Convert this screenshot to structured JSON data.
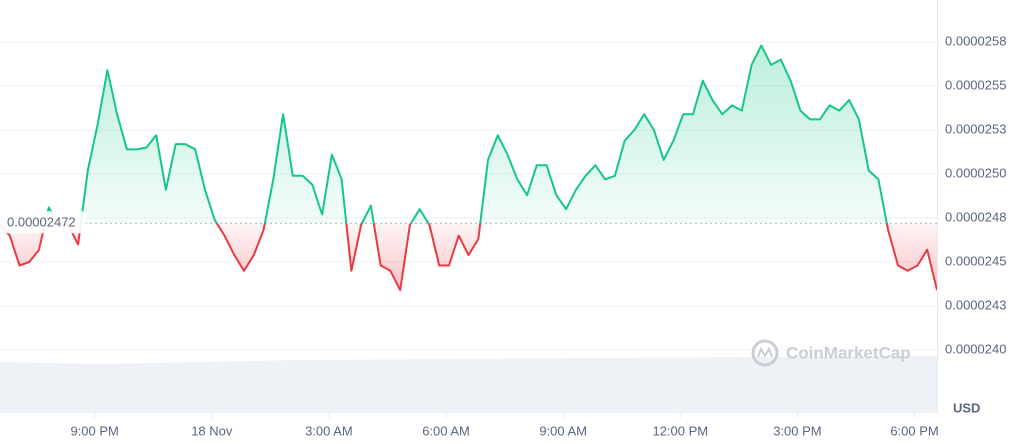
{
  "chart_data": {
    "type": "baseline-line",
    "y_axis_label": "USD",
    "watermark": "CoinMarketCap",
    "baseline": 2.472e-05,
    "up_color": "#16c784",
    "down_color": "#ea3943",
    "values": [
      2.471e-05,
      2.465e-05,
      2.448e-05,
      2.45e-05,
      2.457e-05,
      2.481e-05,
      2.471e-05,
      2.471e-05,
      2.46e-05,
      2.502e-05,
      2.528e-05,
      2.559e-05,
      2.534e-05,
      2.514e-05,
      2.514e-05,
      2.515e-05,
      2.522e-05,
      2.491e-05,
      2.517e-05,
      2.517e-05,
      2.514e-05,
      2.491e-05,
      2.474e-05,
      2.465e-05,
      2.454e-05,
      2.445e-05,
      2.454e-05,
      2.468e-05,
      2.497e-05,
      2.534e-05,
      2.499e-05,
      2.499e-05,
      2.494e-05,
      2.477e-05,
      2.511e-05,
      2.497e-05,
      2.445e-05,
      2.471e-05,
      2.482e-05,
      2.448e-05,
      2.445e-05,
      2.434e-05,
      2.471e-05,
      2.48e-05,
      2.471e-05,
      2.448e-05,
      2.448e-05,
      2.465e-05,
      2.454e-05,
      2.463e-05,
      2.508e-05,
      2.522e-05,
      2.511e-05,
      2.497e-05,
      2.488e-05,
      2.505e-05,
      2.505e-05,
      2.488e-05,
      2.48e-05,
      2.491e-05,
      2.499e-05,
      2.505e-05,
      2.497e-05,
      2.499e-05,
      2.519e-05,
      2.525e-05,
      2.534e-05,
      2.525e-05,
      2.508e-05,
      2.519e-05,
      2.534e-05,
      2.534e-05,
      2.553e-05,
      2.542e-05,
      2.534e-05,
      2.539e-05,
      2.536e-05,
      2.562e-05,
      2.573e-05,
      2.562e-05,
      2.565e-05,
      2.553e-05,
      2.536e-05,
      2.531e-05,
      2.531e-05,
      2.539e-05,
      2.536e-05,
      2.542e-05,
      2.531e-05,
      2.502e-05,
      2.497e-05,
      2.468e-05,
      2.448e-05,
      2.445e-05,
      2.448e-05,
      2.457e-05,
      2.434e-05
    ],
    "xlim": [
      0,
      96
    ],
    "xticks": [
      {
        "value": 9.7,
        "label": "9:00 PM"
      },
      {
        "value": 21.7,
        "label": "18 Nov"
      },
      {
        "value": 33.7,
        "label": "3:00 AM"
      },
      {
        "value": 45.7,
        "label": "6:00 AM"
      },
      {
        "value": 57.7,
        "label": "9:00 AM"
      },
      {
        "value": 69.7,
        "label": "12:00 PM"
      },
      {
        "value": 81.7,
        "label": "3:00 PM"
      },
      {
        "value": 93.7,
        "label": "6:00 PM"
      }
    ],
    "ylim": [
      2.375e-05,
      2.6e-05
    ],
    "yticks": [
      {
        "value": 2.575e-05,
        "label": "0.0000258"
      },
      2.55e-05,
      {
        "value": 2.525e-05,
        "label": "0.0000253"
      },
      {
        "value": 2.5e-05,
        "label": "0.0000250"
      },
      {
        "value": 2.475e-05,
        "label": "0.0000248"
      },
      2.45e-05,
      {
        "value": 2.425e-05,
        "label": "0.0000243"
      },
      {
        "value": 2.4e-05,
        "label": "0.0000240"
      }
    ],
    "grid": true
  }
}
